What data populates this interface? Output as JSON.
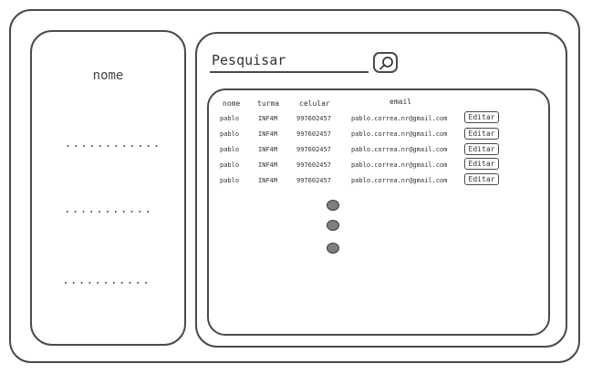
{
  "sidebar": {
    "title": "nome",
    "placeholders": [
      "............",
      "...........",
      "..........."
    ]
  },
  "search": {
    "label": "Pesquisar",
    "icon": "search-icon"
  },
  "table": {
    "headers": {
      "nome": "nome",
      "turma": "turma",
      "celular": "celular",
      "email": "email"
    },
    "rows": [
      {
        "nome": "pablo",
        "turma": "INF4M",
        "celular": "997602457",
        "email": "pablo.correa.nr@gmail.com",
        "action": "Editar"
      },
      {
        "nome": "pablo",
        "turma": "INF4M",
        "celular": "997602457",
        "email": "pablo.correa.nr@gmail.com",
        "action": "Editar"
      },
      {
        "nome": "pablo",
        "turma": "INF4M",
        "celular": "997602457",
        "email": "pablo.correa.nr@gmail.com",
        "action": "Editar"
      },
      {
        "nome": "pablo",
        "turma": "INF4M",
        "celular": "997602457",
        "email": "pablo.correa.nr@gmail.com",
        "action": "Editar"
      },
      {
        "nome": "pablo",
        "turma": "INF4M",
        "celular": "997602457",
        "email": "pablo.correa.nr@gmail.com",
        "action": "Editar"
      }
    ]
  },
  "colors": {
    "stroke": "#4a4a4a",
    "dot_fill": "#7a7f85"
  }
}
